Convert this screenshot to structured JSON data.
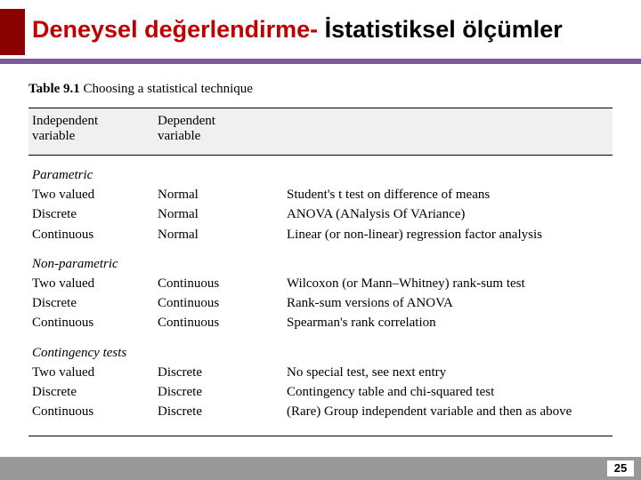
{
  "header": {
    "title_red": "Deneysel değerlendirme-",
    "title_black": " İstatistiksel ölçümler",
    "red_box_color": "#8b0000",
    "purple_line_color": "#7b5aa0"
  },
  "table": {
    "caption_bold": "Table 9.1",
    "caption_rest": " Choosing a statistical technique",
    "header_row": {
      "col1a": "Independent",
      "col1b": "variable",
      "col2a": "Dependent",
      "col2b": "variable",
      "col3": ""
    },
    "sections": {
      "parametric": {
        "title": "Parametric",
        "rows": [
          {
            "c1": "Two valued",
            "c2": "Normal",
            "c3": "Student's t test on difference of means"
          },
          {
            "c1": "Discrete",
            "c2": "Normal",
            "c3": "ANOVA (ANalysis Of VAriance)"
          },
          {
            "c1": "Continuous",
            "c2": "Normal",
            "c3": "Linear (or non-linear) regression factor analysis"
          }
        ]
      },
      "nonparametric": {
        "title": "Non-parametric",
        "rows": [
          {
            "c1": "Two valued",
            "c2": "Continuous",
            "c3": "Wilcoxon (or Mann–Whitney) rank-sum test"
          },
          {
            "c1": "Discrete",
            "c2": "Continuous",
            "c3": "Rank-sum versions of ANOVA"
          },
          {
            "c1": "Continuous",
            "c2": "Continuous",
            "c3": "Spearman's rank correlation"
          }
        ]
      },
      "contingency": {
        "title": "Contingency tests",
        "rows": [
          {
            "c1": "Two valued",
            "c2": "Discrete",
            "c3": "No special test, see next entry"
          },
          {
            "c1": "Discrete",
            "c2": "Discrete",
            "c3": "Contingency table and chi-squared test"
          },
          {
            "c1": "Continuous",
            "c2": "Discrete",
            "c3": "(Rare) Group independent variable and then as above"
          }
        ]
      }
    }
  },
  "footer": {
    "page_number": "25",
    "bar_color": "#999999"
  }
}
